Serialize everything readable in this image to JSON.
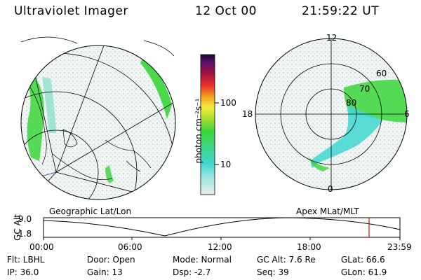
{
  "header": {
    "title": "Ultraviolet Imager",
    "date": "12 Oct 00",
    "time": "21:59:22 UT"
  },
  "colorbar": {
    "unit": "photon cm⁻²s⁻¹",
    "ticks": [
      "100",
      "10"
    ]
  },
  "geo_panel": {
    "label": "Geographic Lat/Lon"
  },
  "apex_panel": {
    "label": "Apex MLat/MLT",
    "mlt_labels": [
      "12",
      "18",
      "6",
      "0"
    ],
    "lat_labels": [
      "60",
      "70",
      "80"
    ]
  },
  "timeline": {
    "ylabel": "GC Alt",
    "yticks": [
      "9.0",
      "1.8"
    ],
    "xticks": [
      "00:00",
      "06:00",
      "12:00",
      "18:00",
      "23:59"
    ]
  },
  "info": {
    "flt": "Flt: LBHL",
    "ip": "IP: 36.0",
    "door": "Door: Open",
    "gain": "Gain: 13",
    "mode": "Mode: Normal",
    "dsp": "Dsp:   -2.7",
    "gcalt": "GC Alt: 7.6 Re",
    "seq": "Seq: 39",
    "glat": "GLat:  66.6",
    "glon": "GLon:  61.9"
  },
  "colors": {
    "green": "#39d63a",
    "cyan": "#3fd8d0",
    "pale": "#dfe9e4",
    "marker": "#cc1111"
  }
}
